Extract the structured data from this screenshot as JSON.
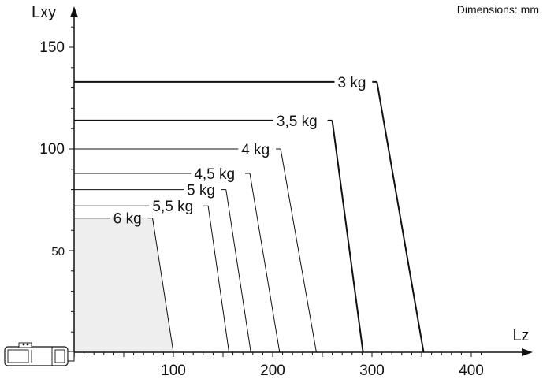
{
  "chart_data": {
    "type": "line",
    "title": "",
    "note": "Dimensions: mm",
    "xlabel": "Lz",
    "ylabel": "Lxy",
    "xlim": [
      0,
      420
    ],
    "ylim": [
      0,
      165
    ],
    "x_ticks": [
      100,
      200,
      300,
      400
    ],
    "y_ticks": [
      50,
      100,
      150
    ],
    "grid": false,
    "shaded_region": "6 kg envelope (light grey fill)",
    "series": [
      {
        "name": "3 kg",
        "points": [
          [
            0,
            133
          ],
          [
            305,
            133
          ],
          [
            352,
            0
          ]
        ],
        "bold": true
      },
      {
        "name": "3,5 kg",
        "points": [
          [
            0,
            114
          ],
          [
            260,
            114
          ],
          [
            291,
            0
          ]
        ],
        "bold": true
      },
      {
        "name": "4 kg",
        "points": [
          [
            0,
            100
          ],
          [
            208,
            100
          ],
          [
            244,
            0
          ]
        ],
        "bold": false
      },
      {
        "name": "4,5 kg",
        "points": [
          [
            0,
            88
          ],
          [
            177,
            88
          ],
          [
            207,
            0
          ]
        ],
        "bold": false
      },
      {
        "name": "5 kg",
        "points": [
          [
            0,
            80
          ],
          [
            153,
            80
          ],
          [
            178,
            0
          ]
        ],
        "bold": false
      },
      {
        "name": "5,5 kg",
        "points": [
          [
            0,
            72
          ],
          [
            135,
            72
          ],
          [
            156,
            0
          ]
        ],
        "bold": false
      },
      {
        "name": "6 kg",
        "points": [
          [
            0,
            66
          ],
          [
            79,
            66
          ],
          [
            100,
            0
          ]
        ],
        "bold": false
      }
    ]
  }
}
